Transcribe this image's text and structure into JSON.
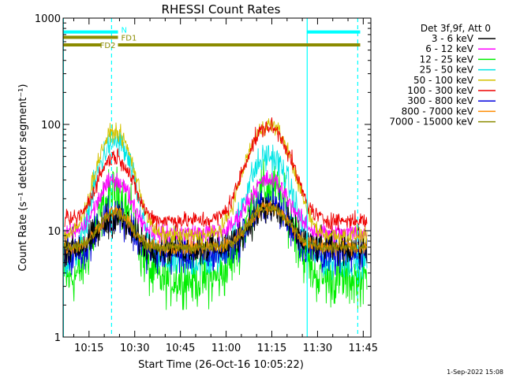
{
  "chart_data": {
    "type": "line",
    "title": "RHESSI Count Rates",
    "ylabel": "Count Rate (s⁻¹ detector segment⁻¹)",
    "xlabel": "Start Time (26-Oct-16 10:05:22)",
    "y_scale": "log",
    "ylim": [
      1,
      1000
    ],
    "xlim_minutes": [
      606.5,
      707.5
    ],
    "y_ticks": [
      {
        "value": 1,
        "label": "1"
      },
      {
        "value": 10,
        "label": "10"
      },
      {
        "value": 100,
        "label": "100"
      },
      {
        "value": 1000,
        "label": "1000"
      }
    ],
    "x_ticks": [
      {
        "value": 615,
        "label": "10:15"
      },
      {
        "value": 630,
        "label": "10:30"
      },
      {
        "value": 645,
        "label": "10:45"
      },
      {
        "value": 660,
        "label": "11:00"
      },
      {
        "value": 675,
        "label": "11:15"
      },
      {
        "value": 690,
        "label": "11:30"
      },
      {
        "value": 705,
        "label": "11:45"
      }
    ],
    "legend_title": "Det 3f,9f, Att 0",
    "legend_position": "top-right",
    "series": [
      {
        "name": "3 - 6 keV",
        "color": "#000000",
        "base": 7.0,
        "peak1": 13.0,
        "peak2": 16.0,
        "noise": 0.18
      },
      {
        "name": "6 - 12 keV",
        "color": "#ff00ff",
        "base": 9.5,
        "peak1": 30.0,
        "peak2": 30.0,
        "noise": 0.1
      },
      {
        "name": "12 - 25 keV",
        "color": "#00ee00",
        "base": 3.5,
        "peak1": 22.0,
        "peak2": 25.0,
        "noise": 0.28
      },
      {
        "name": "25 - 50 keV",
        "color": "#00e5e5",
        "base": 5.0,
        "peak1": 70.0,
        "peak2": 50.0,
        "noise": 0.16
      },
      {
        "name": "50 - 100 keV",
        "color": "#d4c200",
        "base": 9.0,
        "peak1": 85.0,
        "peak2": 100.0,
        "noise": 0.09
      },
      {
        "name": "100 - 300 keV",
        "color": "#ee0000",
        "base": 12.5,
        "peak1": 50.0,
        "peak2": 95.0,
        "noise": 0.09
      },
      {
        "name": "300 - 800 keV",
        "color": "#0000dd",
        "base": 6.0,
        "peak1": 15.0,
        "peak2": 18.0,
        "noise": 0.2
      },
      {
        "name": "800 - 7000 keV",
        "color": "#ff8c00",
        "base": 7.0,
        "peak1": 15.0,
        "peak2": 17.0,
        "noise": 0.08
      },
      {
        "name": "7000 - 15000 keV",
        "color": "#8b8b00",
        "base": 7.0,
        "peak1": 15.0,
        "peak2": 17.0,
        "noise": 0.06
      }
    ],
    "flags": [
      {
        "label": "N",
        "color": "#00ffff",
        "y": 740,
        "segments": [
          [
            606.5,
            624.5
          ],
          [
            686.5,
            704.0
          ]
        ]
      },
      {
        "label": "FD1",
        "color": "#8b8b00",
        "y": 660,
        "segments": [
          [
            606.5,
            624.5
          ]
        ]
      },
      {
        "label": "FD2",
        "color": "#8b8b00",
        "y": 560,
        "segments": [
          [
            606.5,
            619.0
          ],
          [
            624.5,
            704.0
          ]
        ]
      }
    ],
    "vlines_solid": [
      606.6,
      686.6
    ],
    "vlines_dashed": [
      622.4,
      703.2
    ],
    "footer": "1-Sep-2022 15:08"
  }
}
